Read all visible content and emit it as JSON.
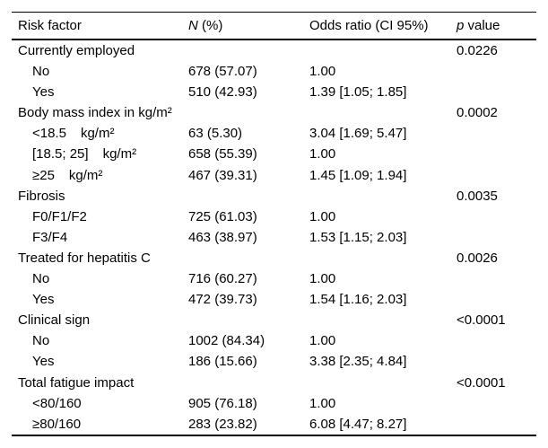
{
  "table": {
    "header": {
      "risk_factor": "Risk factor",
      "n_italic": "N",
      "n_rest": " (%)",
      "odds_ratio": "Odds ratio (CI 95%)",
      "p_italic": "p",
      "p_rest": " value"
    },
    "rows": [
      {
        "factor": "Currently employed",
        "indent": false,
        "n": "",
        "or": "",
        "p": "0.0226"
      },
      {
        "factor": "No",
        "indent": true,
        "n": "678 (57.07)",
        "or": "1.00",
        "p": ""
      },
      {
        "factor": "Yes",
        "indent": true,
        "n": "510 (42.93)",
        "or": "1.39 [1.05; 1.85]",
        "p": ""
      },
      {
        "factor": "Body mass index in kg/m²",
        "indent": false,
        "n": "",
        "or": "",
        "p": "0.0002"
      },
      {
        "factor": "<18.5",
        "unit": "kg/m²",
        "indent": true,
        "n": "63 (5.30)",
        "or": "3.04 [1.69; 5.47]",
        "p": ""
      },
      {
        "factor": "[18.5; 25]",
        "unit": "kg/m²",
        "indent": true,
        "n": "658 (55.39)",
        "or": "1.00",
        "p": ""
      },
      {
        "factor": "≥25",
        "unit": "kg/m²",
        "indent": true,
        "n": "467 (39.31)",
        "or": "1.45 [1.09; 1.94]",
        "p": ""
      },
      {
        "factor": "Fibrosis",
        "indent": false,
        "n": "",
        "or": "",
        "p": "0.0035"
      },
      {
        "factor": "F0/F1/F2",
        "indent": true,
        "n": "725 (61.03)",
        "or": "1.00",
        "p": ""
      },
      {
        "factor": "F3/F4",
        "indent": true,
        "n": "463 (38.97)",
        "or": "1.53 [1.15; 2.03]",
        "p": ""
      },
      {
        "factor": "Treated for hepatitis C",
        "indent": false,
        "n": "",
        "or": "",
        "p": "0.0026"
      },
      {
        "factor": "No",
        "indent": true,
        "n": "716 (60.27)",
        "or": "1.00",
        "p": ""
      },
      {
        "factor": "Yes",
        "indent": true,
        "n": "472 (39.73)",
        "or": "1.54 [1.16; 2.03]",
        "p": ""
      },
      {
        "factor": "Clinical sign",
        "indent": false,
        "n": "",
        "or": "",
        "p": "<0.0001"
      },
      {
        "factor": "No",
        "indent": true,
        "n": "1002 (84.34)",
        "or": "1.00",
        "p": ""
      },
      {
        "factor": "Yes",
        "indent": true,
        "n": "186 (15.66)",
        "or": "3.38 [2.35; 4.84]",
        "p": ""
      },
      {
        "factor": "Total fatigue impact",
        "indent": false,
        "n": "",
        "or": "",
        "p": "<0.0001"
      },
      {
        "factor": "<80/160",
        "indent": true,
        "n": "905 (76.18)",
        "or": "1.00",
        "p": ""
      },
      {
        "factor": "≥80/160",
        "indent": true,
        "n": "283 (23.82)",
        "or": "6.08 [4.47; 8.27]",
        "p": ""
      }
    ]
  }
}
